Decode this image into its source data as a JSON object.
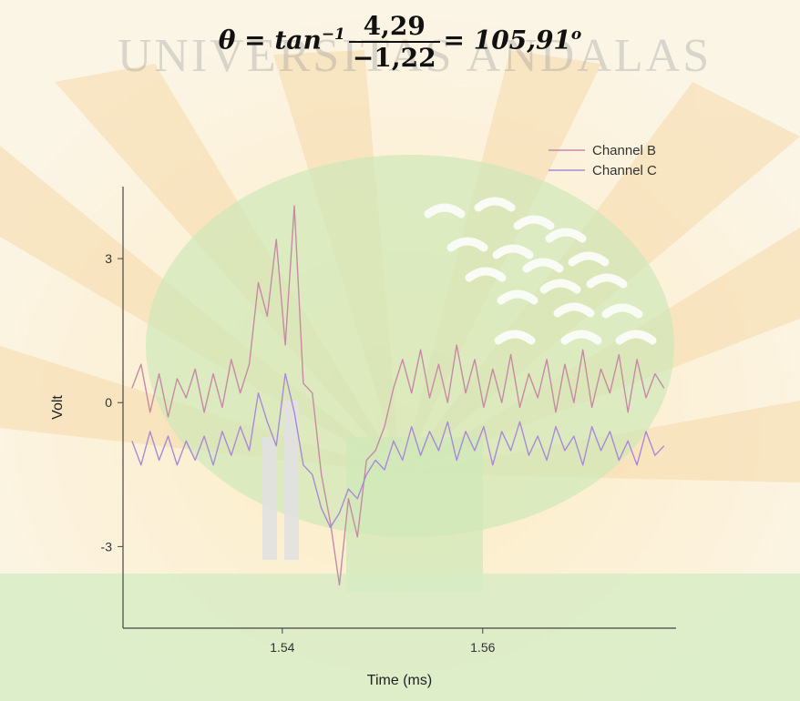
{
  "formula": {
    "lhs": "θ = tan",
    "exponent": "−1",
    "numerator": "4,29",
    "denominator": "−1,22",
    "rhs": "= 105,91",
    "degree": "o"
  },
  "watermark": "UNIVERSITAS ANDALAS",
  "chart_data": {
    "type": "line",
    "x_label": "Time (ms)",
    "y_label": "Volt",
    "x": [
      1.525,
      1.5259,
      1.5268,
      1.5277,
      1.5286,
      1.5295,
      1.5304,
      1.5313,
      1.5322,
      1.5331,
      1.534,
      1.5349,
      1.5358,
      1.5367,
      1.5376,
      1.5385,
      1.5394,
      1.5403,
      1.5412,
      1.5421,
      1.543,
      1.5439,
      1.5448,
      1.5457,
      1.5466,
      1.5475,
      1.5484,
      1.5493,
      1.5502,
      1.5511,
      1.552,
      1.5529,
      1.5538,
      1.5547,
      1.5556,
      1.5565,
      1.5574,
      1.5583,
      1.5592,
      1.5601,
      1.561,
      1.5619,
      1.5628,
      1.5637,
      1.5646,
      1.5655,
      1.5664,
      1.5673,
      1.5682,
      1.5691,
      1.57,
      1.5709,
      1.5718,
      1.5727,
      1.5736,
      1.5745,
      1.5754,
      1.5763,
      1.5772,
      1.5781
    ],
    "series": [
      {
        "name": "Channel B",
        "color": "#c78aa6",
        "values": [
          0.3,
          0.8,
          -0.2,
          0.6,
          -0.3,
          0.5,
          0.1,
          0.7,
          -0.2,
          0.6,
          -0.1,
          0.9,
          0.2,
          0.8,
          2.5,
          1.8,
          3.4,
          1.2,
          4.1,
          0.4,
          0.2,
          -1.5,
          -2.5,
          -3.8,
          -2.0,
          -2.8,
          -1.2,
          -1.0,
          -0.5,
          0.3,
          0.9,
          0.2,
          1.1,
          0.1,
          0.8,
          0.0,
          1.2,
          0.2,
          0.9,
          -0.1,
          0.7,
          0.0,
          1.0,
          -0.1,
          0.6,
          0.1,
          0.9,
          -0.2,
          0.8,
          0.0,
          1.1,
          -0.1,
          0.7,
          0.2,
          1.0,
          -0.2,
          0.9,
          0.1,
          0.6,
          0.3
        ]
      },
      {
        "name": "Channel C",
        "color": "#a88ad8",
        "values": [
          -0.8,
          -1.3,
          -0.6,
          -1.2,
          -0.7,
          -1.3,
          -0.8,
          -1.2,
          -0.7,
          -1.3,
          -0.6,
          -1.1,
          -0.5,
          -1.0,
          0.2,
          -0.4,
          -0.9,
          0.6,
          -0.2,
          -1.3,
          -1.5,
          -2.2,
          -2.6,
          -2.3,
          -1.8,
          -2.0,
          -1.5,
          -1.2,
          -1.4,
          -0.8,
          -1.2,
          -0.5,
          -1.1,
          -0.6,
          -1.0,
          -0.4,
          -1.2,
          -0.6,
          -1.0,
          -0.5,
          -1.3,
          -0.6,
          -1.0,
          -0.4,
          -1.1,
          -0.7,
          -1.2,
          -0.5,
          -1.0,
          -0.7,
          -1.3,
          -0.5,
          -1.0,
          -0.6,
          -1.2,
          -0.8,
          -1.3,
          -0.6,
          -1.1,
          -0.9
        ]
      }
    ],
    "xlim": [
      1.5241,
      1.5793
    ],
    "xticks": [
      1.54,
      1.56
    ],
    "ylim": [
      -4.7,
      4.5
    ],
    "yticks": [
      3,
      0,
      -3
    ],
    "legend": "top-right"
  }
}
